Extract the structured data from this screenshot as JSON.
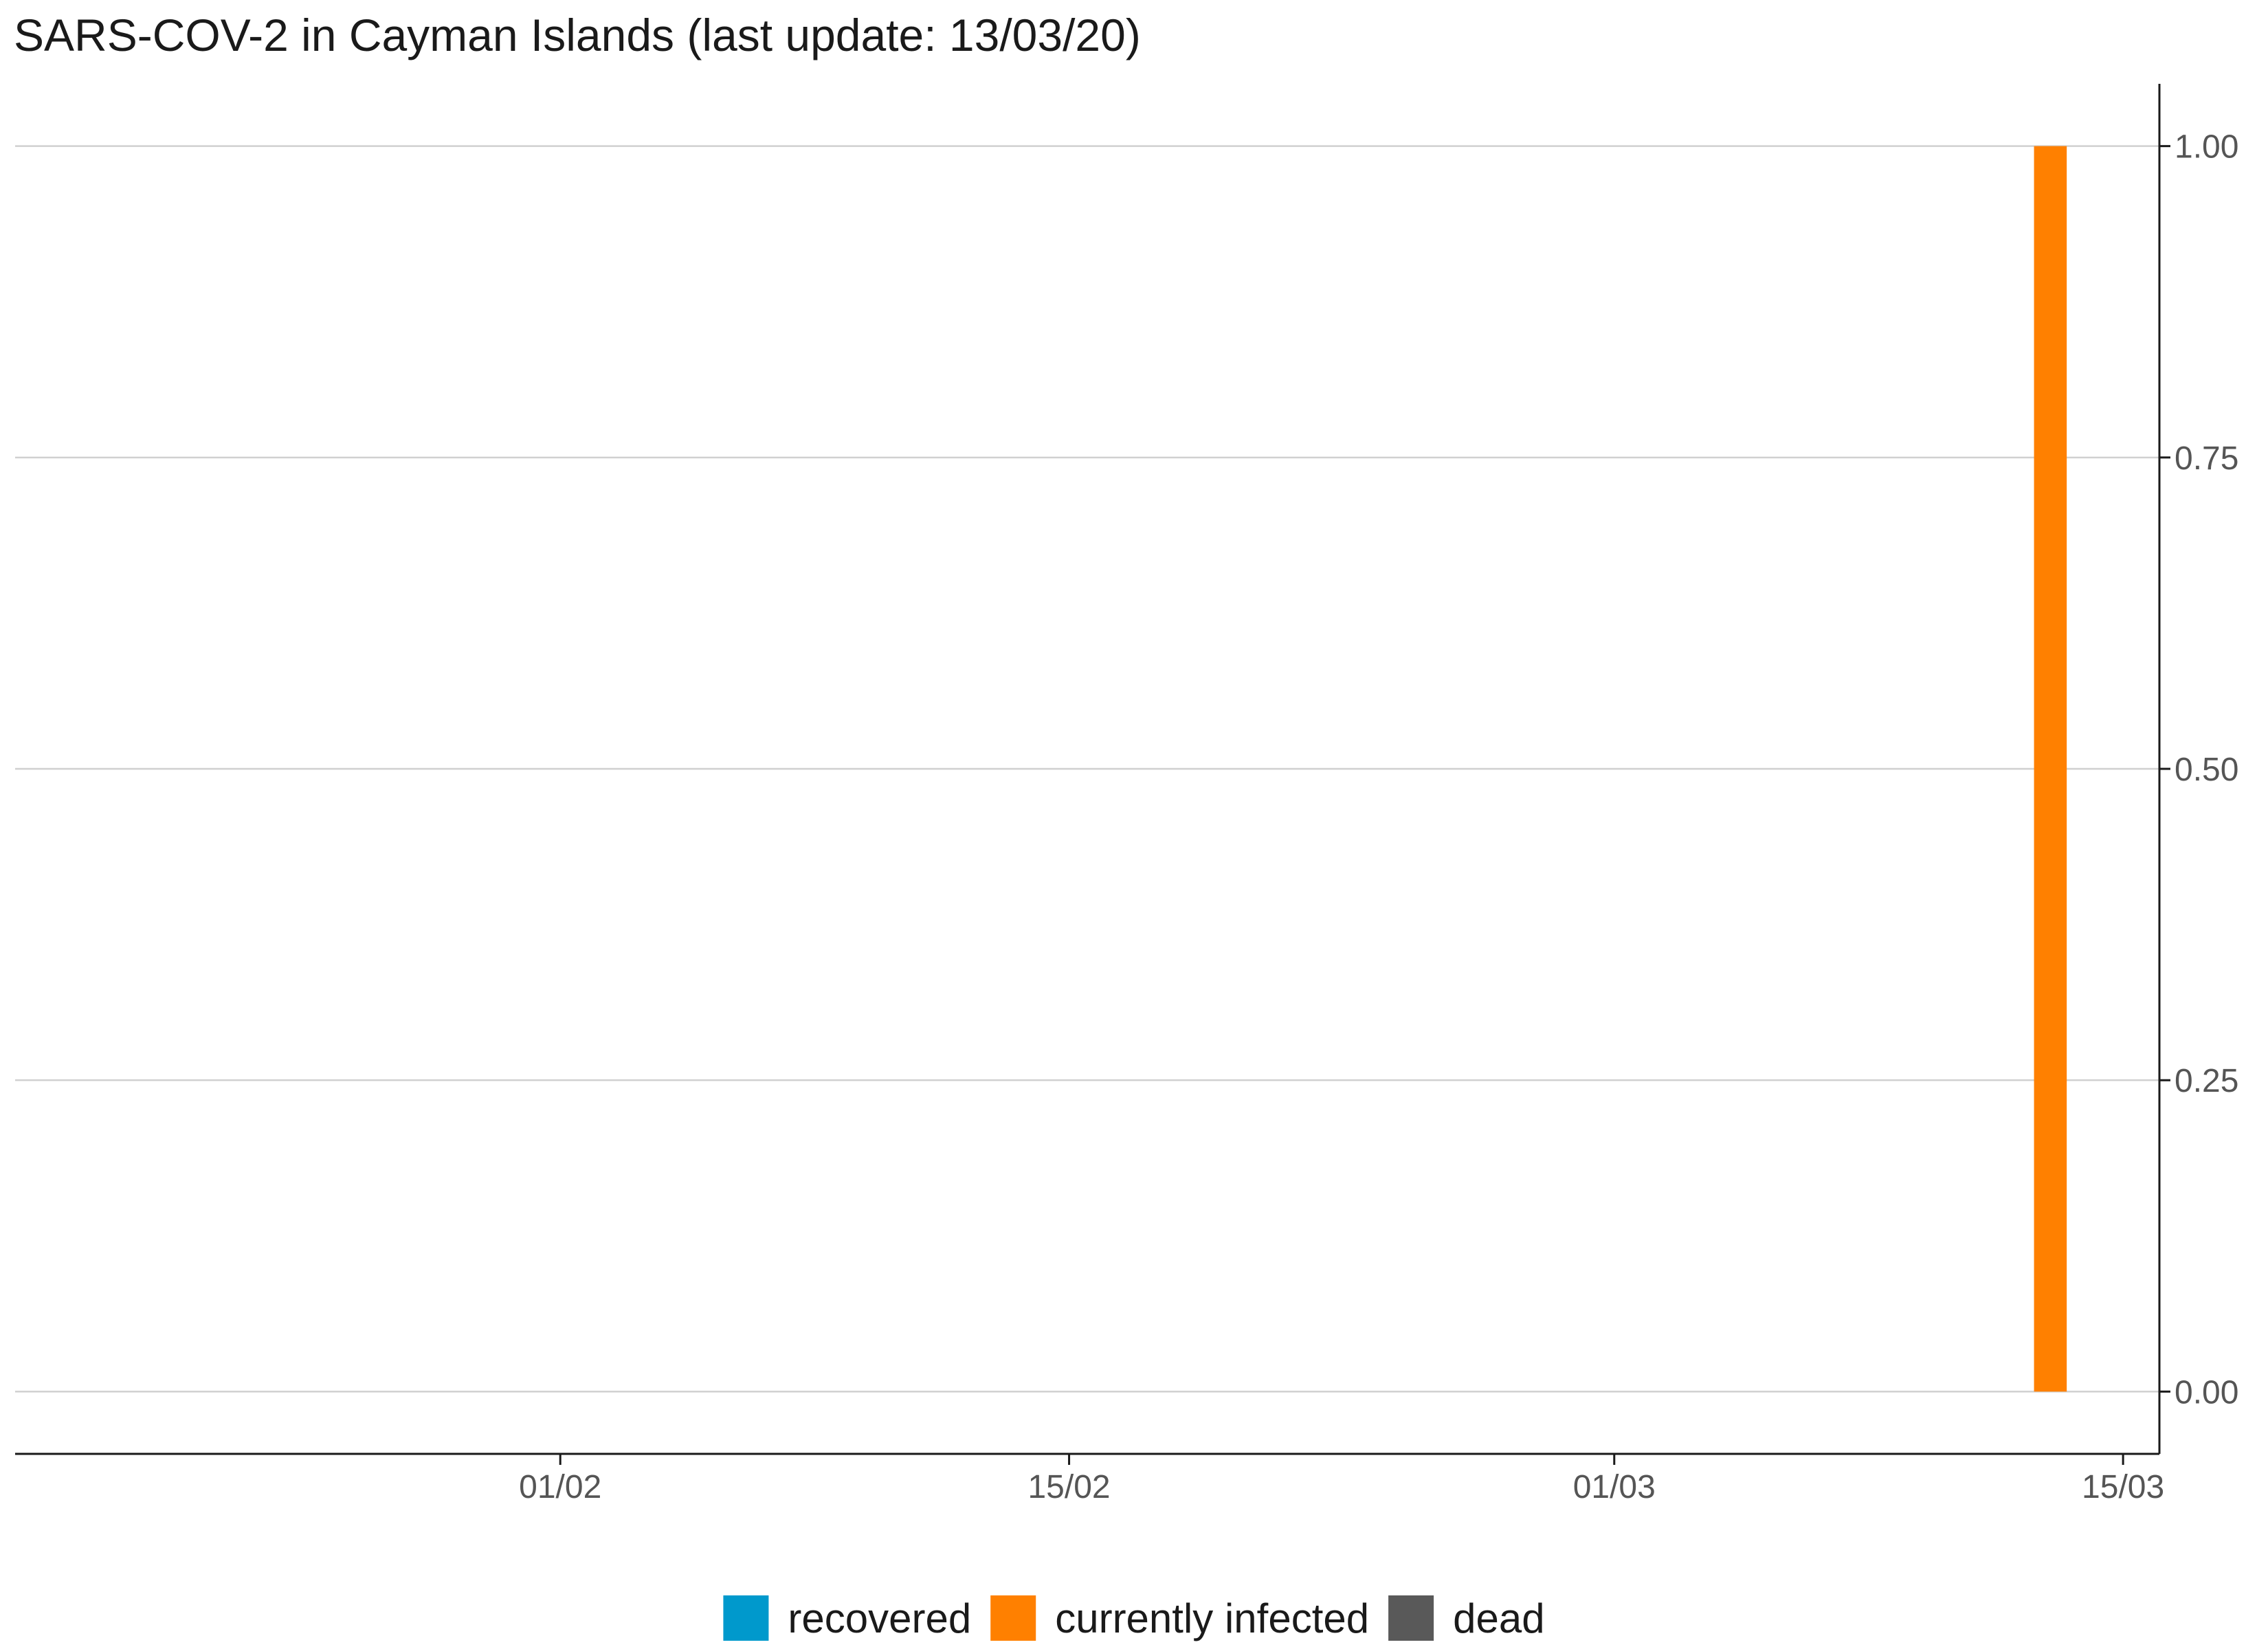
{
  "chart_data": {
    "type": "bar",
    "title": "SARS-COV-2 in Cayman Islands (last update: 13/03/20)",
    "xlabel": "",
    "ylabel": "",
    "x_axis": {
      "type": "date",
      "range": [
        "2020-01-17",
        "2020-03-16"
      ],
      "ticks": [
        {
          "date": "2020-02-01",
          "label": "01/02"
        },
        {
          "date": "2020-02-15",
          "label": "15/02"
        },
        {
          "date": "2020-03-01",
          "label": "01/03"
        },
        {
          "date": "2020-03-15",
          "label": "15/03"
        }
      ]
    },
    "y_axis": {
      "position": "right",
      "ylim": [
        -0.05,
        1.05
      ],
      "ticks": [
        {
          "value": 0.0,
          "label": "0.00"
        },
        {
          "value": 0.25,
          "label": "0.25"
        },
        {
          "value": 0.5,
          "label": "0.50"
        },
        {
          "value": 0.75,
          "label": "0.75"
        },
        {
          "value": 1.0,
          "label": "1.00"
        }
      ]
    },
    "grid": {
      "horizontal": true,
      "vertical": false
    },
    "legend_position": "bottom",
    "stacked": true,
    "series": [
      {
        "name": "recovered",
        "color": "#0099cc",
        "points": []
      },
      {
        "name": "currently infected",
        "color": "#ff8000",
        "points": [
          {
            "date": "2020-03-13",
            "value": 1
          }
        ]
      },
      {
        "name": "dead",
        "color": "#595959",
        "points": []
      }
    ]
  }
}
